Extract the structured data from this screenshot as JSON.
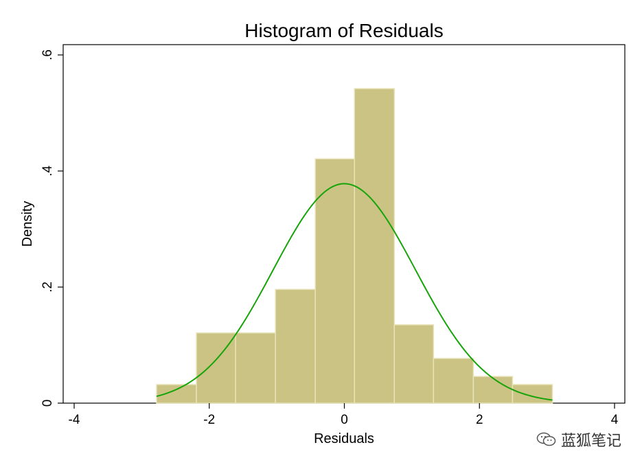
{
  "chart_data": {
    "type": "bar",
    "title": "Histogram of Residuals",
    "xlabel": "Residuals",
    "ylabel": "Density",
    "xlim": [
      -4,
      4
    ],
    "ylim": [
      0,
      0.6
    ],
    "x_ticks": [
      -4,
      -2,
      0,
      2,
      4
    ],
    "x_tick_labels": [
      "-4",
      "-2",
      "0",
      "2",
      "4"
    ],
    "y_ticks": [
      0,
      0.2,
      0.4,
      0.6
    ],
    "y_tick_labels": [
      "0",
      ".2",
      ".4",
      ".6"
    ],
    "grid": false,
    "bins": [
      {
        "x0": -2.78,
        "x1": -2.19,
        "density": 0.032
      },
      {
        "x0": -2.19,
        "x1": -1.61,
        "density": 0.121
      },
      {
        "x0": -1.61,
        "x1": -1.02,
        "density": 0.121
      },
      {
        "x0": -1.02,
        "x1": -0.43,
        "density": 0.196
      },
      {
        "x0": -0.43,
        "x1": 0.15,
        "density": 0.421
      },
      {
        "x0": 0.15,
        "x1": 0.74,
        "density": 0.542
      },
      {
        "x0": 0.74,
        "x1": 1.32,
        "density": 0.135
      },
      {
        "x0": 1.32,
        "x1": 1.91,
        "density": 0.077
      },
      {
        "x0": 1.91,
        "x1": 2.49,
        "density": 0.046
      },
      {
        "x0": 2.49,
        "x1": 3.08,
        "density": 0.032
      }
    ],
    "normal_curve": {
      "mean": 0,
      "sd": 1.055,
      "x_range": [
        -2.78,
        3.08
      ]
    },
    "colors": {
      "bar_fill": "#cbc383",
      "bar_stroke": "#e8e3b8",
      "curve": "#16a40a"
    }
  },
  "watermark": {
    "text": "蓝狐笔记",
    "icon": "wechat-icon"
  }
}
